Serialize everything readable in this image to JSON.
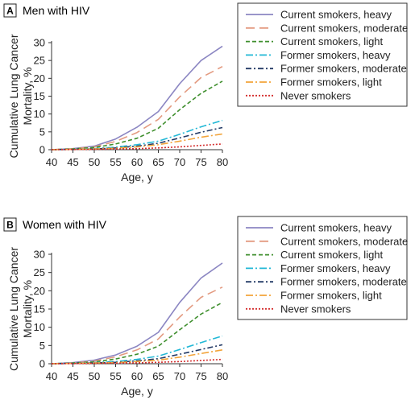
{
  "chart_data": [
    {
      "panel": "A",
      "title": "Men with HIV",
      "type": "line",
      "xlabel": "Age, y",
      "ylabel": "Cumulative Lung Cancer Mortality, %",
      "ylabel_lines": [
        "Cumulative Lung Cancer",
        "Mortality, %"
      ],
      "xlim": [
        40,
        80
      ],
      "ylim": [
        0,
        30
      ],
      "xticks": [
        40,
        45,
        50,
        55,
        60,
        65,
        70,
        75,
        80
      ],
      "yticks": [
        0,
        5,
        10,
        15,
        20,
        25,
        30
      ],
      "grid": false,
      "legend_position": "right",
      "x": [
        40,
        45,
        50,
        55,
        60,
        65,
        70,
        75,
        80
      ],
      "series": [
        {
          "name": "Current smokers, heavy",
          "color": "#8b86c2",
          "dash": "solid",
          "values": [
            0,
            0.3,
            1.0,
            3.0,
            6.3,
            10.7,
            18.5,
            25.0,
            29.0
          ]
        },
        {
          "name": "Current smokers, moderate",
          "color": "#e39a80",
          "dash": "longdash",
          "values": [
            0,
            0.3,
            0.8,
            2.3,
            4.8,
            8.5,
            14.8,
            20.2,
            23.3
          ]
        },
        {
          "name": "Current smokers, light",
          "color": "#3f8f2e",
          "dash": "dash",
          "values": [
            0,
            0.2,
            0.6,
            1.6,
            3.2,
            6.0,
            11.2,
            15.8,
            19.2
          ]
        },
        {
          "name": "Former smokers, heavy",
          "color": "#22b8d6",
          "dash": "dashdot",
          "values": [
            0,
            0.1,
            0.3,
            0.7,
            1.4,
            2.4,
            4.3,
            6.4,
            8.2
          ]
        },
        {
          "name": "Former smokers, moderate",
          "color": "#233a66",
          "dash": "dashdot2",
          "values": [
            0,
            0.1,
            0.2,
            0.5,
            1.0,
            1.8,
            3.3,
            4.9,
            6.2
          ]
        },
        {
          "name": "Former smokers, light",
          "color": "#f2a43a",
          "dash": "dashdot",
          "values": [
            0,
            0.1,
            0.2,
            0.4,
            0.8,
            1.4,
            2.4,
            3.5,
            4.4
          ]
        },
        {
          "name": "Never smokers",
          "color": "#d42f2f",
          "dash": "dot",
          "values": [
            0,
            0.05,
            0.1,
            0.2,
            0.3,
            0.5,
            0.8,
            1.2,
            1.6
          ]
        }
      ]
    },
    {
      "panel": "B",
      "title": "Women with HIV",
      "type": "line",
      "xlabel": "Age, y",
      "ylabel": "Cumulative Lung Cancer Mortality, %",
      "ylabel_lines": [
        "Cumulative Lung Cancer",
        "Mortality, %"
      ],
      "xlim": [
        40,
        80
      ],
      "ylim": [
        0,
        30
      ],
      "xticks": [
        40,
        45,
        50,
        55,
        60,
        65,
        70,
        75,
        80
      ],
      "yticks": [
        0,
        5,
        10,
        15,
        20,
        25,
        30
      ],
      "grid": false,
      "legend_position": "right",
      "x": [
        40,
        45,
        50,
        55,
        60,
        65,
        70,
        75,
        80
      ],
      "series": [
        {
          "name": "Current smokers, heavy",
          "color": "#8b86c2",
          "dash": "solid",
          "values": [
            0,
            0.3,
            1.0,
            2.4,
            4.8,
            8.6,
            16.8,
            23.5,
            27.6
          ]
        },
        {
          "name": "Current smokers, moderate",
          "color": "#e39a80",
          "dash": "longdash",
          "values": [
            0,
            0.2,
            0.7,
            1.9,
            3.8,
            6.8,
            12.8,
            18.2,
            21.0
          ]
        },
        {
          "name": "Current smokers, light",
          "color": "#3f8f2e",
          "dash": "dash",
          "values": [
            0,
            0.2,
            0.5,
            1.3,
            2.6,
            4.8,
            9.3,
            13.6,
            16.8
          ]
        },
        {
          "name": "Former smokers, heavy",
          "color": "#22b8d6",
          "dash": "dashdot",
          "values": [
            0,
            0.1,
            0.3,
            0.6,
            1.2,
            2.1,
            3.9,
            5.8,
            7.6
          ]
        },
        {
          "name": "Former smokers, moderate",
          "color": "#233a66",
          "dash": "dashdot2",
          "values": [
            0,
            0.1,
            0.2,
            0.4,
            0.8,
            1.4,
            2.6,
            3.9,
            5.2
          ]
        },
        {
          "name": "Former smokers, light",
          "color": "#f2a43a",
          "dash": "dashdot",
          "values": [
            0,
            0.1,
            0.2,
            0.3,
            0.6,
            1.0,
            1.8,
            2.8,
            3.8
          ]
        },
        {
          "name": "Never smokers",
          "color": "#d42f2f",
          "dash": "dot",
          "values": [
            0,
            0.05,
            0.1,
            0.15,
            0.25,
            0.4,
            0.6,
            0.9,
            1.2
          ]
        }
      ]
    }
  ]
}
